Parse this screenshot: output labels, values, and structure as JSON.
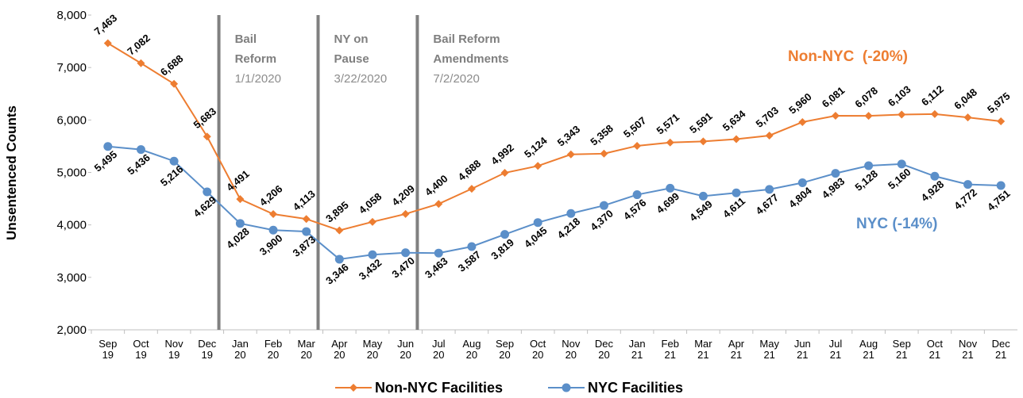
{
  "chart_data": {
    "type": "line",
    "y_label": "Unsentenced Counts",
    "categories": [
      "Sep 19",
      "Oct 19",
      "Nov 19",
      "Dec 19",
      "Jan 20",
      "Feb 20",
      "Mar 20",
      "Apr 20",
      "May 20",
      "Jun 20",
      "Jul 20",
      "Aug 20",
      "Sep 20",
      "Oct 20",
      "Nov 20",
      "Dec 20",
      "Jan 21",
      "Feb 21",
      "Mar 21",
      "Apr 21",
      "May 21",
      "Jun 21",
      "Jul 21",
      "Aug 21",
      "Sep 21",
      "Oct 21",
      "Nov 21",
      "Dec 21"
    ],
    "series": [
      {
        "name": "Non-NYC Facilities",
        "color": "#ed7d31",
        "marker": "diamond",
        "tag": "Non-NYC  (-20%)",
        "values": [
          7463,
          7082,
          6688,
          5683,
          4491,
          4206,
          4113,
          3895,
          4058,
          4209,
          4400,
          4688,
          4992,
          5124,
          5343,
          5358,
          5507,
          5571,
          5591,
          5634,
          5703,
          5960,
          6081,
          6078,
          6103,
          6112,
          6048,
          5975
        ],
        "value_labels": [
          "7,463",
          "7,082",
          "6,688",
          "5,683",
          "4,491",
          "4,206",
          "4,113",
          "3,895",
          "4,058",
          "4,209",
          "4,400",
          "4,688",
          "4,992",
          "5,124",
          "5,343",
          "5,358",
          "5,507",
          "5,571",
          "5,591",
          "5,634",
          "5,703",
          "5,960",
          "6,081",
          "6,078",
          "6,103",
          "6,112",
          "6,048",
          "5,975"
        ]
      },
      {
        "name": "NYC Facilities",
        "color": "#5b8fc9",
        "marker": "circle",
        "tag": "NYC (-14%)",
        "values": [
          5495,
          5436,
          5216,
          4629,
          4028,
          3900,
          3873,
          3346,
          3432,
          3470,
          3463,
          3587,
          3819,
          4045,
          4218,
          4370,
          4576,
          4699,
          4549,
          4611,
          4677,
          4804,
          4983,
          5128,
          5160,
          4928,
          4772,
          4751
        ],
        "value_labels": [
          "5,495",
          "5,436",
          "5,216",
          "4,629",
          "4,028",
          "3,900",
          "3,873",
          "3,346",
          "3,432",
          "3,470",
          "3,463",
          "3,587",
          "3,819",
          "4,045",
          "4,218",
          "4,370",
          "4,576",
          "4,699",
          "4,549",
          "4,611",
          "4,677",
          "4,804",
          "4,983",
          "5,128",
          "5,160",
          "4,928",
          "4,772",
          "4,751"
        ]
      }
    ],
    "ylim": [
      2000,
      8000
    ],
    "yticks": [
      {
        "value": 2000,
        "label": "2,000"
      },
      {
        "value": 3000,
        "label": "3,000"
      },
      {
        "value": 4000,
        "label": "4,000"
      },
      {
        "value": 5000,
        "label": "5,000"
      },
      {
        "value": 6000,
        "label": "6,000"
      },
      {
        "value": 7000,
        "label": "7,000"
      },
      {
        "value": 8000,
        "label": "8,000"
      }
    ],
    "annotations": [
      {
        "label": "Bail Reform",
        "date": "1/1/2020"
      },
      {
        "label": "NY on Pause",
        "date": "3/22/2020"
      },
      {
        "label": "Bail Reform Amendments",
        "date": "7/2/2020"
      }
    ],
    "legend": "bottom"
  }
}
